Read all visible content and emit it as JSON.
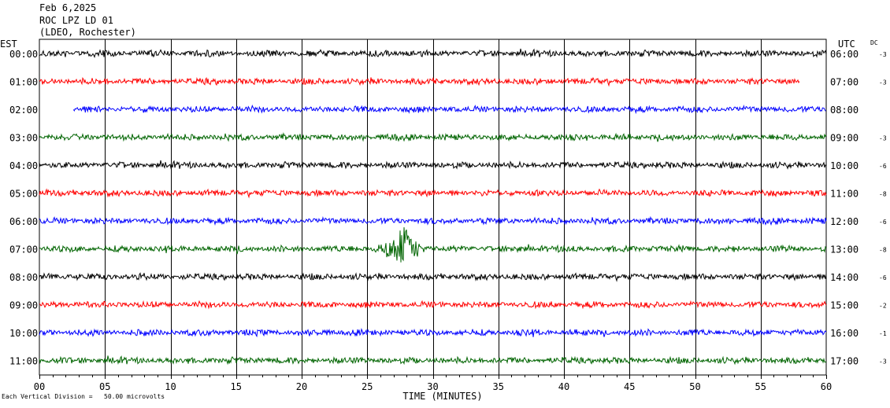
{
  "header": {
    "date": "Feb 6,2025",
    "station": "ROC LPZ LD 01",
    "network": "(LDEO, Rochester)"
  },
  "footnote": "Each Vertical Division =   50.00 microvolts",
  "chart_data": {
    "type": "line",
    "xlabel": "TIME (MINUTES)",
    "xlim": [
      0,
      60
    ],
    "x_ticks": [
      "00",
      "05",
      "10",
      "15",
      "20",
      "25",
      "30",
      "35",
      "40",
      "45",
      "50",
      "55",
      "60"
    ],
    "left_axis_title": "EST",
    "right_axis_title": "UTC",
    "dc_title": "DC",
    "trace_colors": [
      "#000000",
      "#ff0000",
      "#0000ff",
      "#006400"
    ],
    "rows": [
      {
        "est": "00:00",
        "utc": "06:00",
        "dc": "-3",
        "start_min": 0,
        "end_min": 60,
        "event": null
      },
      {
        "est": "01:00",
        "utc": "07:00",
        "dc": "-3",
        "start_min": 0,
        "end_min": 58,
        "event": null
      },
      {
        "est": "02:00",
        "utc": "08:00",
        "dc": "",
        "start_min": 2.6,
        "end_min": 60,
        "event": null
      },
      {
        "est": "03:00",
        "utc": "09:00",
        "dc": "-3",
        "start_min": 0,
        "end_min": 60,
        "event": null
      },
      {
        "est": "04:00",
        "utc": "10:00",
        "dc": "-6",
        "start_min": 0,
        "end_min": 60,
        "event": null
      },
      {
        "est": "05:00",
        "utc": "11:00",
        "dc": "-8",
        "start_min": 0,
        "end_min": 60,
        "event": null
      },
      {
        "est": "06:00",
        "utc": "12:00",
        "dc": "-6",
        "start_min": 0,
        "end_min": 60,
        "event": null
      },
      {
        "est": "07:00",
        "utc": "13:00",
        "dc": "-8",
        "start_min": 0,
        "end_min": 60,
        "event": {
          "start_min": 25.0,
          "peak_min": 27.8,
          "end_min": 30.0
        }
      },
      {
        "est": "08:00",
        "utc": "14:00",
        "dc": "-6",
        "start_min": 0,
        "end_min": 60,
        "event": null
      },
      {
        "est": "09:00",
        "utc": "15:00",
        "dc": "-2",
        "start_min": 0,
        "end_min": 60,
        "event": null
      },
      {
        "est": "10:00",
        "utc": "16:00",
        "dc": "-1",
        "start_min": 0,
        "end_min": 60,
        "event": null
      },
      {
        "est": "11:00",
        "utc": "17:00",
        "dc": "-3",
        "start_min": 0,
        "end_min": 60,
        "event": null
      }
    ]
  }
}
